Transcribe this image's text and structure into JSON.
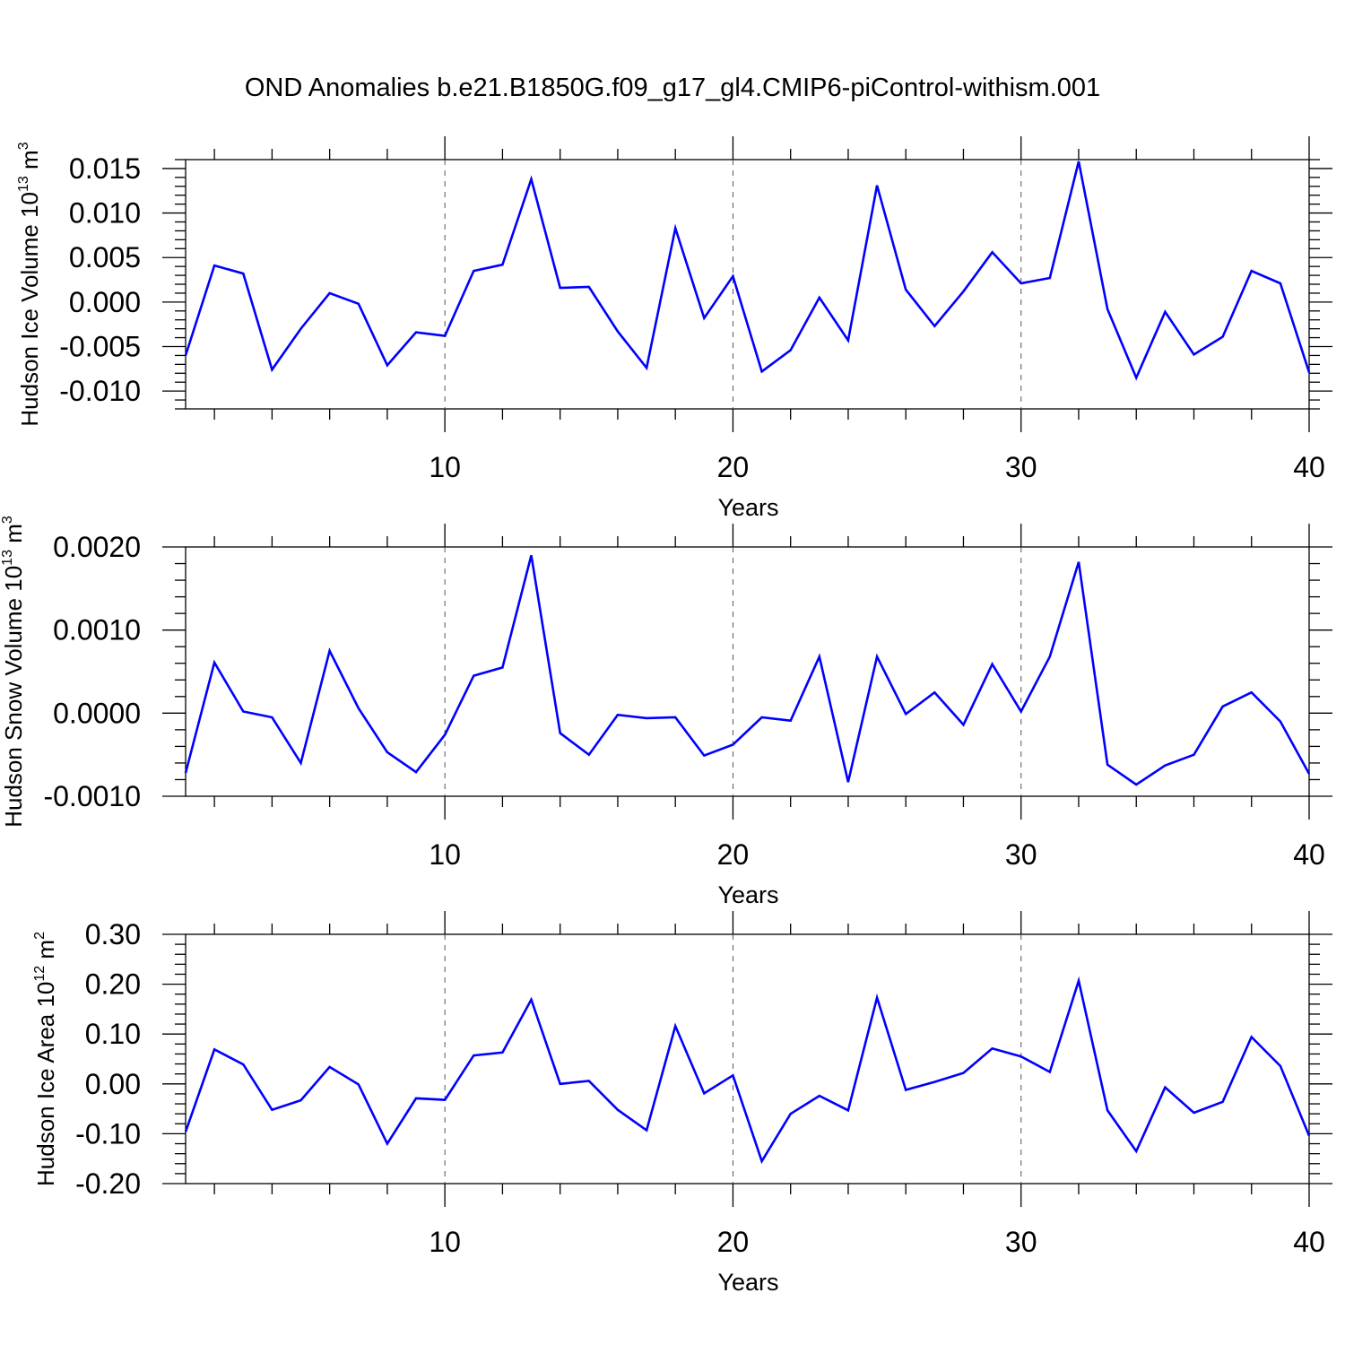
{
  "chart_data": {
    "title": "OND Anomalies b.e21.B1850G.f09_g17_gl4.CMIP6-piControl-withism.001",
    "panels": [
      {
        "type": "line",
        "ylabel": {
          "text": "Hudson Ice Volume 10",
          "exp": "13",
          "unit": " m",
          "unit_exp": "3"
        },
        "xlabel": "Years",
        "xlim": [
          1,
          40
        ],
        "ylim": [
          -0.012,
          0.016
        ],
        "yticks": [
          -0.01,
          -0.005,
          0.0,
          0.005,
          0.01,
          0.015
        ],
        "ytick_labels": [
          "-0.010",
          "-0.005",
          "0.000",
          "0.005",
          "0.010",
          "0.015"
        ],
        "yminor_step": 0.001,
        "xticks": [
          10,
          20,
          30,
          40
        ],
        "xtick_labels": [
          "10",
          "20",
          "30",
          "40"
        ],
        "grid_x": [
          10,
          20,
          30
        ],
        "color": "#0000ff",
        "x": [
          1,
          2,
          3,
          4,
          5,
          6,
          7,
          8,
          9,
          10,
          11,
          12,
          13,
          14,
          15,
          16,
          17,
          18,
          19,
          20,
          21,
          22,
          23,
          24,
          25,
          26,
          27,
          28,
          29,
          30,
          31,
          32,
          33,
          34,
          35,
          36,
          37,
          38,
          39,
          40
        ],
        "values": [
          -0.006,
          0.0041,
          0.0032,
          -0.0076,
          -0.003,
          0.001,
          -0.0002,
          -0.0071,
          -0.0034,
          -0.0038,
          0.0035,
          0.0042,
          0.0138,
          0.0016,
          0.0017,
          -0.0033,
          -0.0074,
          0.0083,
          -0.0018,
          0.0029,
          -0.0078,
          -0.0054,
          0.0005,
          -0.0043,
          0.0131,
          0.0014,
          -0.0027,
          0.0012,
          0.0056,
          0.0021,
          0.0027,
          0.0158,
          -0.0008,
          -0.0085,
          -0.0011,
          -0.0059,
          -0.0039,
          0.0035,
          0.0021,
          -0.0079
        ]
      },
      {
        "type": "line",
        "ylabel": {
          "text": "Hudson Snow Volume 10",
          "exp": "13",
          "unit": " m",
          "unit_exp": "3"
        },
        "xlabel": "Years",
        "xlim": [
          1,
          40
        ],
        "ylim": [
          -0.001,
          0.002
        ],
        "yticks": [
          -0.001,
          0.0,
          0.001,
          0.002
        ],
        "ytick_labels": [
          "-0.0010",
          "0.0000",
          "0.0010",
          "0.0020"
        ],
        "yminor_step": 0.0002,
        "xticks": [
          10,
          20,
          30,
          40
        ],
        "xtick_labels": [
          "10",
          "20",
          "30",
          "40"
        ],
        "grid_x": [
          10,
          20,
          30
        ],
        "color": "#0000ff",
        "x": [
          1,
          2,
          3,
          4,
          5,
          6,
          7,
          8,
          9,
          10,
          11,
          12,
          13,
          14,
          15,
          16,
          17,
          18,
          19,
          20,
          21,
          22,
          23,
          24,
          25,
          26,
          27,
          28,
          29,
          30,
          31,
          32,
          33,
          34,
          35,
          36,
          37,
          38,
          39,
          40
        ],
        "values": [
          -0.00072,
          0.00061,
          2e-05,
          -5e-05,
          -0.0006,
          0.00075,
          6e-05,
          -0.00047,
          -0.00071,
          -0.00026,
          0.00045,
          0.00055,
          0.0019,
          -0.00024,
          -0.0005,
          -2e-05,
          -6e-05,
          -5e-05,
          -0.00051,
          -0.00038,
          -5e-05,
          -9e-05,
          0.00068,
          -0.00083,
          0.00068,
          -1e-05,
          0.00025,
          -0.00014,
          0.00059,
          2e-05,
          0.00068,
          0.00182,
          -0.00062,
          -0.00086,
          -0.00063,
          -0.0005,
          8e-05,
          0.00025,
          -0.0001,
          -0.00073
        ]
      },
      {
        "type": "line",
        "ylabel": {
          "text": "Hudson Ice Area 10",
          "exp": "12",
          "unit": " m",
          "unit_exp": "2"
        },
        "xlabel": "Years",
        "xlim": [
          1,
          40
        ],
        "ylim": [
          -0.2,
          0.3
        ],
        "yticks": [
          -0.2,
          -0.1,
          0.0,
          0.1,
          0.2,
          0.3
        ],
        "ytick_labels": [
          "-0.20",
          "-0.10",
          "0.00",
          "0.10",
          "0.20",
          "0.30"
        ],
        "yminor_step": 0.02,
        "xticks": [
          10,
          20,
          30,
          40
        ],
        "xtick_labels": [
          "10",
          "20",
          "30",
          "40"
        ],
        "grid_x": [
          10,
          20,
          30
        ],
        "color": "#0000ff",
        "x": [
          1,
          2,
          3,
          4,
          5,
          6,
          7,
          8,
          9,
          10,
          11,
          12,
          13,
          14,
          15,
          16,
          17,
          18,
          19,
          20,
          21,
          22,
          23,
          24,
          25,
          26,
          27,
          28,
          29,
          30,
          31,
          32,
          33,
          34,
          35,
          36,
          37,
          38,
          39,
          40
        ],
        "values": [
          -0.096,
          0.069,
          0.039,
          -0.052,
          -0.033,
          0.034,
          -0.001,
          -0.12,
          -0.029,
          -0.032,
          0.057,
          0.063,
          0.169,
          0.0,
          0.006,
          -0.052,
          -0.093,
          0.116,
          -0.019,
          0.017,
          -0.155,
          -0.06,
          -0.024,
          -0.053,
          0.173,
          -0.012,
          0.004,
          0.022,
          0.071,
          0.055,
          0.024,
          0.207,
          -0.053,
          -0.135,
          -0.007,
          -0.058,
          -0.036,
          0.094,
          0.036,
          -0.104
        ]
      }
    ]
  }
}
